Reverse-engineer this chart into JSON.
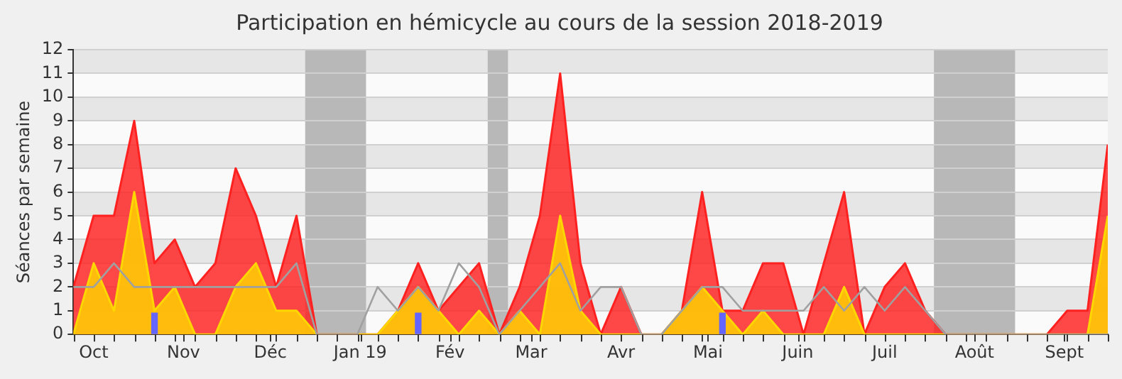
{
  "chart_data": {
    "type": "area",
    "title": "Participation en hémicycle au cours de la session 2018-2019",
    "ylabel": "Séances par semaine",
    "x": [
      "2018-09-24",
      "2018-10-01",
      "2018-10-08",
      "2018-10-15",
      "2018-10-22",
      "2018-10-29",
      "2018-11-05",
      "2018-11-12",
      "2018-11-19",
      "2018-11-26",
      "2018-12-03",
      "2018-12-10",
      "2018-12-17",
      "2018-12-24",
      "2018-12-31",
      "2019-01-07",
      "2019-01-14",
      "2019-01-21",
      "2019-01-28",
      "2019-02-04",
      "2019-02-11",
      "2019-02-18",
      "2019-02-25",
      "2019-03-04",
      "2019-03-11",
      "2019-03-18",
      "2019-03-25",
      "2019-04-01",
      "2019-04-08",
      "2019-04-15",
      "2019-04-22",
      "2019-04-29",
      "2019-05-06",
      "2019-05-13",
      "2019-05-20",
      "2019-05-27",
      "2019-06-03",
      "2019-06-10",
      "2019-06-17",
      "2019-06-24",
      "2019-07-01",
      "2019-07-08",
      "2019-07-15",
      "2019-07-22",
      "2019-07-29",
      "2019-08-05",
      "2019-08-12",
      "2019-08-19",
      "2019-08-26",
      "2019-09-02",
      "2019-09-09",
      "2019-09-16"
    ],
    "series": [
      {
        "color": "#ff2020",
        "values": [
          2,
          5,
          5,
          9,
          3,
          4,
          2,
          3,
          7,
          5,
          2,
          5,
          0,
          0,
          0,
          0,
          1,
          3,
          1,
          2,
          3,
          0,
          2,
          5,
          11,
          3,
          0,
          2,
          0,
          0,
          1,
          6,
          1,
          1,
          3,
          3,
          0,
          3,
          6,
          0,
          2,
          3,
          1,
          0,
          0,
          0,
          0,
          0,
          0,
          1,
          1,
          8
        ]
      },
      {
        "color": "#ffd700",
        "values": [
          0,
          3,
          1,
          6,
          1,
          2,
          0,
          0,
          2,
          3,
          1,
          1,
          0,
          0,
          0,
          0,
          1,
          2,
          1,
          0,
          1,
          0,
          1,
          0,
          5,
          1,
          0,
          0,
          0,
          0,
          1,
          2,
          1,
          0,
          1,
          0,
          0,
          0,
          2,
          0,
          0,
          0,
          0,
          0,
          0,
          0,
          0,
          0,
          0,
          0,
          0,
          5
        ]
      },
      {
        "type": "line",
        "color": "#a0a0a0",
        "values": [
          2,
          2,
          3,
          2,
          2,
          2,
          2,
          2,
          2,
          2,
          2,
          3,
          0,
          0,
          0,
          2,
          1,
          2,
          1,
          3,
          2,
          0,
          1,
          2,
          3,
          1,
          2,
          2,
          0,
          0,
          1,
          2,
          2,
          1,
          1,
          1,
          1,
          2,
          1,
          2,
          1,
          2,
          1,
          0,
          0,
          0,
          0,
          0,
          0,
          0,
          0,
          0
        ]
      },
      {
        "type": "bar",
        "color": "#6464ff",
        "values": [
          null,
          null,
          null,
          null,
          0.9,
          null,
          null,
          null,
          null,
          null,
          null,
          null,
          null,
          null,
          null,
          null,
          null,
          0.9,
          null,
          null,
          null,
          null,
          null,
          null,
          null,
          null,
          null,
          null,
          null,
          null,
          null,
          null,
          0.9,
          null,
          null,
          null,
          null,
          null,
          null,
          null,
          null,
          null,
          null,
          null,
          null,
          null,
          null,
          null,
          null,
          null,
          null,
          null
        ]
      }
    ],
    "xlim": [
      "2018-09-24",
      "2019-09-16"
    ],
    "xticks": [
      {
        "value": "2018-09-24",
        "label": null
      },
      {
        "value": "2018-10-01",
        "label": "Oct"
      },
      {
        "value": "2018-10-08",
        "label": null
      },
      {
        "value": "2018-10-15",
        "label": null
      },
      {
        "value": "2018-10-22",
        "label": null
      },
      {
        "value": "2018-10-29",
        "label": null
      },
      {
        "value": "2018-11-01",
        "label": "Nov"
      },
      {
        "value": "2018-11-05",
        "label": null
      },
      {
        "value": "2018-11-12",
        "label": null
      },
      {
        "value": "2018-11-19",
        "label": null
      },
      {
        "value": "2018-11-26",
        "label": null
      },
      {
        "value": "2018-12-01",
        "label": "Déc"
      },
      {
        "value": "2018-12-03",
        "label": null
      },
      {
        "value": "2018-12-10",
        "label": null
      },
      {
        "value": "2018-12-17",
        "label": null
      },
      {
        "value": "2018-12-24",
        "label": null
      },
      {
        "value": "2018-12-31",
        "label": null
      },
      {
        "value": "2019-01-01",
        "label": "Jan 19"
      },
      {
        "value": "2019-01-07",
        "label": null
      },
      {
        "value": "2019-01-14",
        "label": null
      },
      {
        "value": "2019-01-21",
        "label": null
      },
      {
        "value": "2019-01-28",
        "label": null
      },
      {
        "value": "2019-02-01",
        "label": "Fév"
      },
      {
        "value": "2019-02-04",
        "label": null
      },
      {
        "value": "2019-02-11",
        "label": null
      },
      {
        "value": "2019-02-18",
        "label": null
      },
      {
        "value": "2019-02-25",
        "label": null
      },
      {
        "value": "2019-03-01",
        "label": "Mar"
      },
      {
        "value": "2019-03-04",
        "label": null
      },
      {
        "value": "2019-03-11",
        "label": null
      },
      {
        "value": "2019-03-18",
        "label": null
      },
      {
        "value": "2019-03-25",
        "label": null
      },
      {
        "value": "2019-04-01",
        "label": "Avr"
      },
      {
        "value": "2019-04-08",
        "label": null
      },
      {
        "value": "2019-04-15",
        "label": null
      },
      {
        "value": "2019-04-22",
        "label": null
      },
      {
        "value": "2019-04-29",
        "label": null
      },
      {
        "value": "2019-05-01",
        "label": "Mai"
      },
      {
        "value": "2019-05-06",
        "label": null
      },
      {
        "value": "2019-05-13",
        "label": null
      },
      {
        "value": "2019-05-20",
        "label": null
      },
      {
        "value": "2019-05-27",
        "label": null
      },
      {
        "value": "2019-06-01",
        "label": "Juin"
      },
      {
        "value": "2019-06-03",
        "label": null
      },
      {
        "value": "2019-06-10",
        "label": null
      },
      {
        "value": "2019-06-17",
        "label": null
      },
      {
        "value": "2019-06-24",
        "label": null
      },
      {
        "value": "2019-07-01",
        "label": "Juil"
      },
      {
        "value": "2019-07-08",
        "label": null
      },
      {
        "value": "2019-07-15",
        "label": null
      },
      {
        "value": "2019-07-22",
        "label": null
      },
      {
        "value": "2019-07-29",
        "label": null
      },
      {
        "value": "2019-08-01",
        "label": "Août"
      },
      {
        "value": "2019-08-05",
        "label": null
      },
      {
        "value": "2019-08-12",
        "label": null
      },
      {
        "value": "2019-08-19",
        "label": null
      },
      {
        "value": "2019-08-26",
        "label": null
      },
      {
        "value": "2019-09-01",
        "label": "Sept"
      },
      {
        "value": "2019-09-02",
        "label": null
      },
      {
        "value": "2019-09-09",
        "label": null
      },
      {
        "value": "2019-09-16",
        "label": null
      }
    ],
    "ylim": [
      0,
      12
    ],
    "yticks": [
      0,
      1,
      2,
      3,
      4,
      5,
      6,
      7,
      8,
      9,
      10,
      11,
      12
    ],
    "bands": [
      {
        "axis": "x",
        "from": "2018-12-13",
        "to": "2019-01-03",
        "color": "#b8b8b8"
      },
      {
        "axis": "x",
        "from": "2019-02-14",
        "to": "2019-02-21",
        "color": "#b8b8b8"
      },
      {
        "axis": "x",
        "from": "2019-07-18",
        "to": "2019-08-15",
        "color": "#b8b8b8"
      }
    ],
    "grid": "y",
    "legend": false,
    "marker": "none",
    "line_style": "solid"
  }
}
